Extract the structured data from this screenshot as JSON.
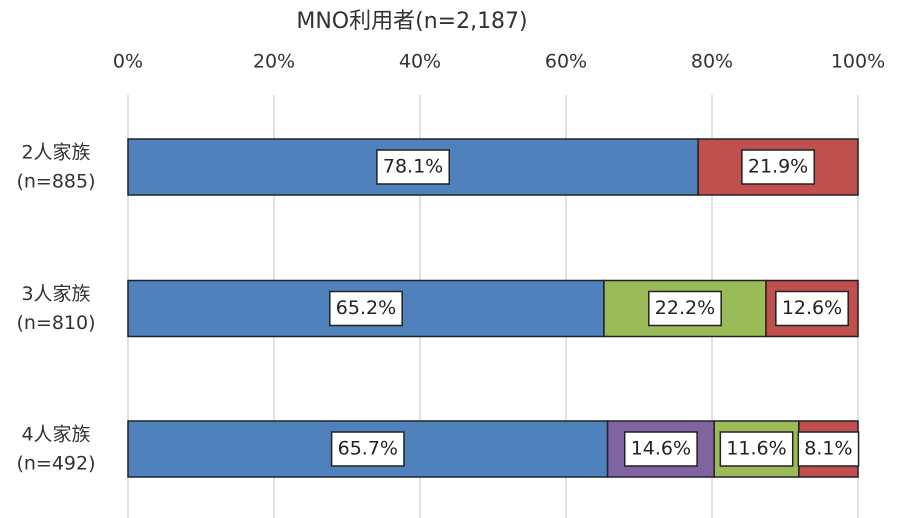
{
  "chart_data": {
    "type": "stacked-bar",
    "orientation": "horizontal",
    "title": "MNO利用者(n=2,187)",
    "categories": [
      [
        "2人家族",
        "(n=885)"
      ],
      [
        "3人家族",
        "(n=810)"
      ],
      [
        "4人家族",
        "(n=492)"
      ]
    ],
    "series": [
      {
        "color": "#4f81bd",
        "values": [
          78.1,
          65.2,
          65.7
        ],
        "value_labels": [
          "78.1%",
          "65.2%",
          "65.7%"
        ]
      },
      {
        "color": "#8064a2",
        "values": [
          null,
          null,
          14.6
        ],
        "value_labels": [
          null,
          null,
          "14.6%"
        ]
      },
      {
        "color": "#9bbb59",
        "values": [
          null,
          22.2,
          11.6
        ],
        "value_labels": [
          null,
          "22.2%",
          "11.6%"
        ]
      },
      {
        "color": "#c0504d",
        "values": [
          21.9,
          12.6,
          8.1
        ],
        "value_labels": [
          "21.9%",
          "12.6%",
          "8.1%"
        ]
      }
    ],
    "xlim": [
      0,
      100
    ],
    "xticks": [
      {
        "value": 0,
        "label": "0%"
      },
      {
        "value": 20,
        "label": "20%"
      },
      {
        "value": 40,
        "label": "40%"
      },
      {
        "value": 60,
        "label": "60%"
      },
      {
        "value": 80,
        "label": "80%"
      },
      {
        "value": 100,
        "label": "100%"
      }
    ],
    "grid": true
  }
}
